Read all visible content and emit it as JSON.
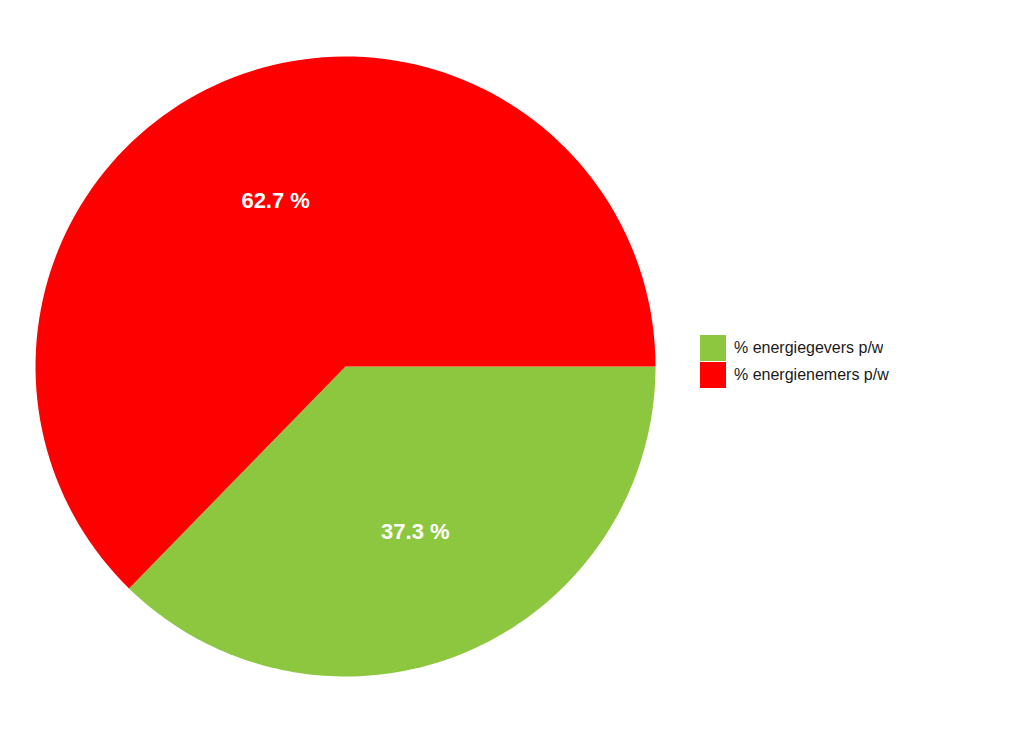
{
  "chart_data": {
    "type": "pie",
    "categories": [
      "% energiegevers p/w",
      "% energienemers p/w"
    ],
    "values": [
      37.3,
      62.7
    ],
    "value_labels": [
      "37.3 %",
      "62.7 %"
    ],
    "colors": [
      "#8dc63f",
      "#ff0000"
    ],
    "data_labels": true,
    "legend": "right"
  }
}
